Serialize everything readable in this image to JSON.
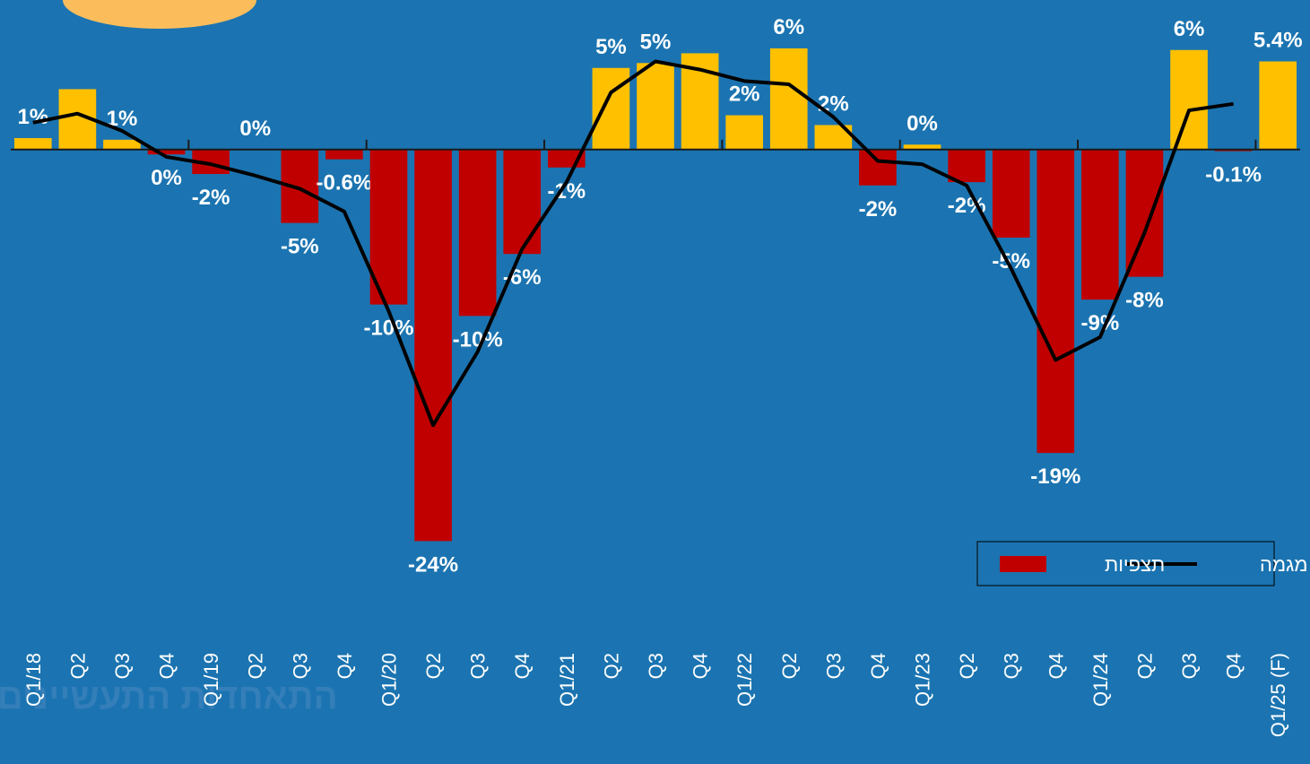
{
  "chart_data": {
    "type": "bar-line",
    "categories": [
      "Q1/18",
      "Q2",
      "Q3",
      "Q4",
      "Q1/19",
      "Q2",
      "Q3",
      "Q4",
      "Q1/20",
      "Q2",
      "Q3",
      "Q4",
      "Q1/21",
      "Q2",
      "Q3",
      "Q4",
      "Q1/22",
      "Q2",
      "Q3",
      "Q4",
      "Q1/23",
      "Q2",
      "Q3",
      "Q4",
      "Q1/24",
      "Q2",
      "Q3",
      "Q4",
      "Q1/25 (F)"
    ],
    "series": [
      {
        "name": "תצפיות",
        "type": "bar",
        "color": "#c00000",
        "positive_color": "#ffc000",
        "values": [
          0.7,
          3.7,
          0.6,
          -0.3,
          -1.5,
          0,
          -4.5,
          -0.6,
          -9.5,
          -24,
          -10.2,
          -6.4,
          -1.1,
          5,
          5.3,
          5.9,
          2.1,
          6.2,
          1.5,
          -2.2,
          0.3,
          -2,
          -5.4,
          -18.6,
          -9.2,
          -7.8,
          6.1,
          -0.1,
          5.4
        ],
        "value_labels": [
          "1%",
          null,
          "1%",
          "0%",
          "-2%",
          "0%",
          "-5%",
          "-0.6%",
          "-10%",
          "-24%",
          "-10%",
          "-6%",
          "-1%",
          "5%",
          "5%",
          null,
          "2%",
          "6%",
          "2%",
          "-2%",
          "0%",
          "-2%",
          "-5%",
          "-19%",
          "-9%",
          "-8%",
          "6%",
          "-0.1%",
          "5.4%"
        ]
      },
      {
        "name": "מגמה",
        "type": "line",
        "color": "#000000",
        "values": [
          1.65,
          2.2,
          1.15,
          -0.45,
          -0.9,
          -1.6,
          -2.4,
          -3.8,
          -9.9,
          -16.9,
          -12.4,
          -6.1,
          -2.0,
          3.5,
          5.4,
          4.9,
          4.2,
          4.0,
          2.0,
          -0.7,
          -0.9,
          -2.2,
          -7.3,
          -12.9,
          -11.5,
          -5.1,
          2.4,
          2.8,
          null
        ]
      }
    ],
    "ylim": [
      -27,
      9
    ],
    "group_size": 4,
    "legend": "bottom-right",
    "logo_text": "התאחדות התעשיינים בישראל"
  }
}
